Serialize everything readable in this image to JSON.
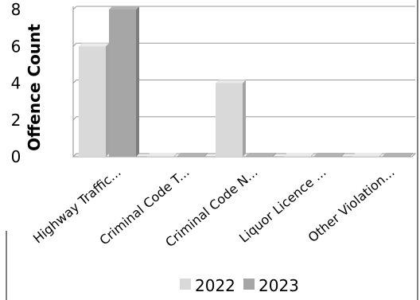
{
  "chart_data": {
    "type": "bar",
    "categories": [
      "Highway Traffic...",
      "Criminal Code T...",
      "Criminal Code N...",
      "Liquor Licence ...",
      "Other Violation..."
    ],
    "series": [
      {
        "name": "2022",
        "values": [
          6,
          0,
          4,
          0,
          0
        ],
        "color": "#d9d9d9"
      },
      {
        "name": "2023",
        "values": [
          8,
          0,
          0,
          0,
          0
        ],
        "color": "#a6a6a6"
      }
    ],
    "ylabel": "Offence Count",
    "xlabel": "",
    "ylim": [
      0,
      8
    ],
    "yticks": [
      0,
      2,
      4,
      6,
      8
    ],
    "grid": true,
    "legend_position": "bottom",
    "style": "3d-bar"
  }
}
